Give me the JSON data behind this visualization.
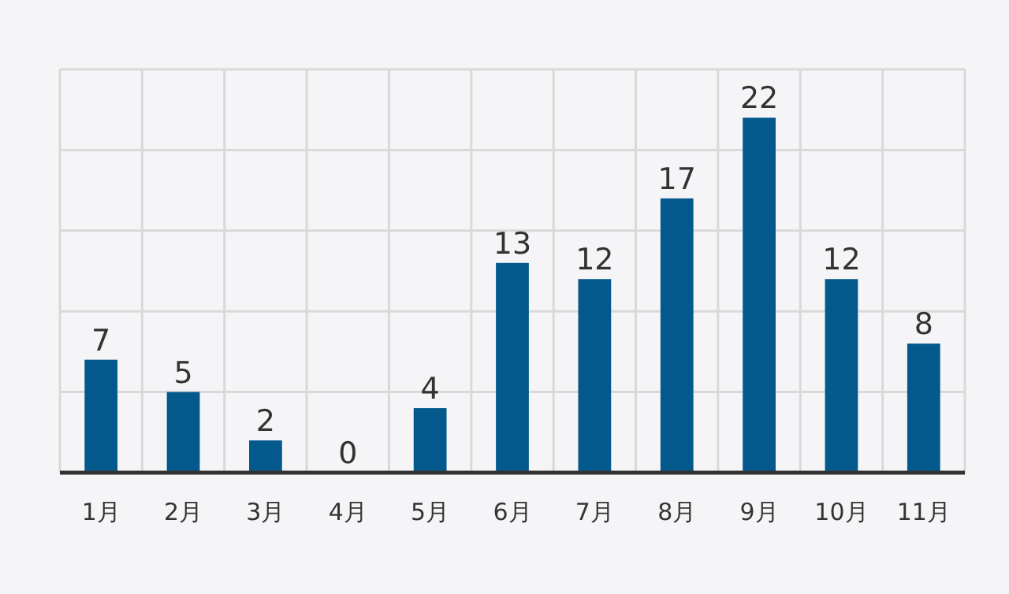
{
  "chart_data": {
    "type": "bar",
    "categories": [
      "1月",
      "2月",
      "3月",
      "4月",
      "5月",
      "6月",
      "7月",
      "8月",
      "9月",
      "10月",
      "11月"
    ],
    "values": [
      7,
      5,
      2,
      0,
      4,
      13,
      12,
      17,
      22,
      12,
      8
    ],
    "color": "#03588c",
    "ylim": [
      0,
      25
    ],
    "yticks": [
      {
        "value": 0,
        "label": null
      },
      {
        "value": 5,
        "label": null
      },
      {
        "value": 10,
        "label": null
      },
      {
        "value": 15,
        "label": null
      },
      {
        "value": 20,
        "label": null
      },
      {
        "value": 25,
        "label": null
      }
    ],
    "tick_labels": "x",
    "grid": true,
    "data_labels": true
  }
}
